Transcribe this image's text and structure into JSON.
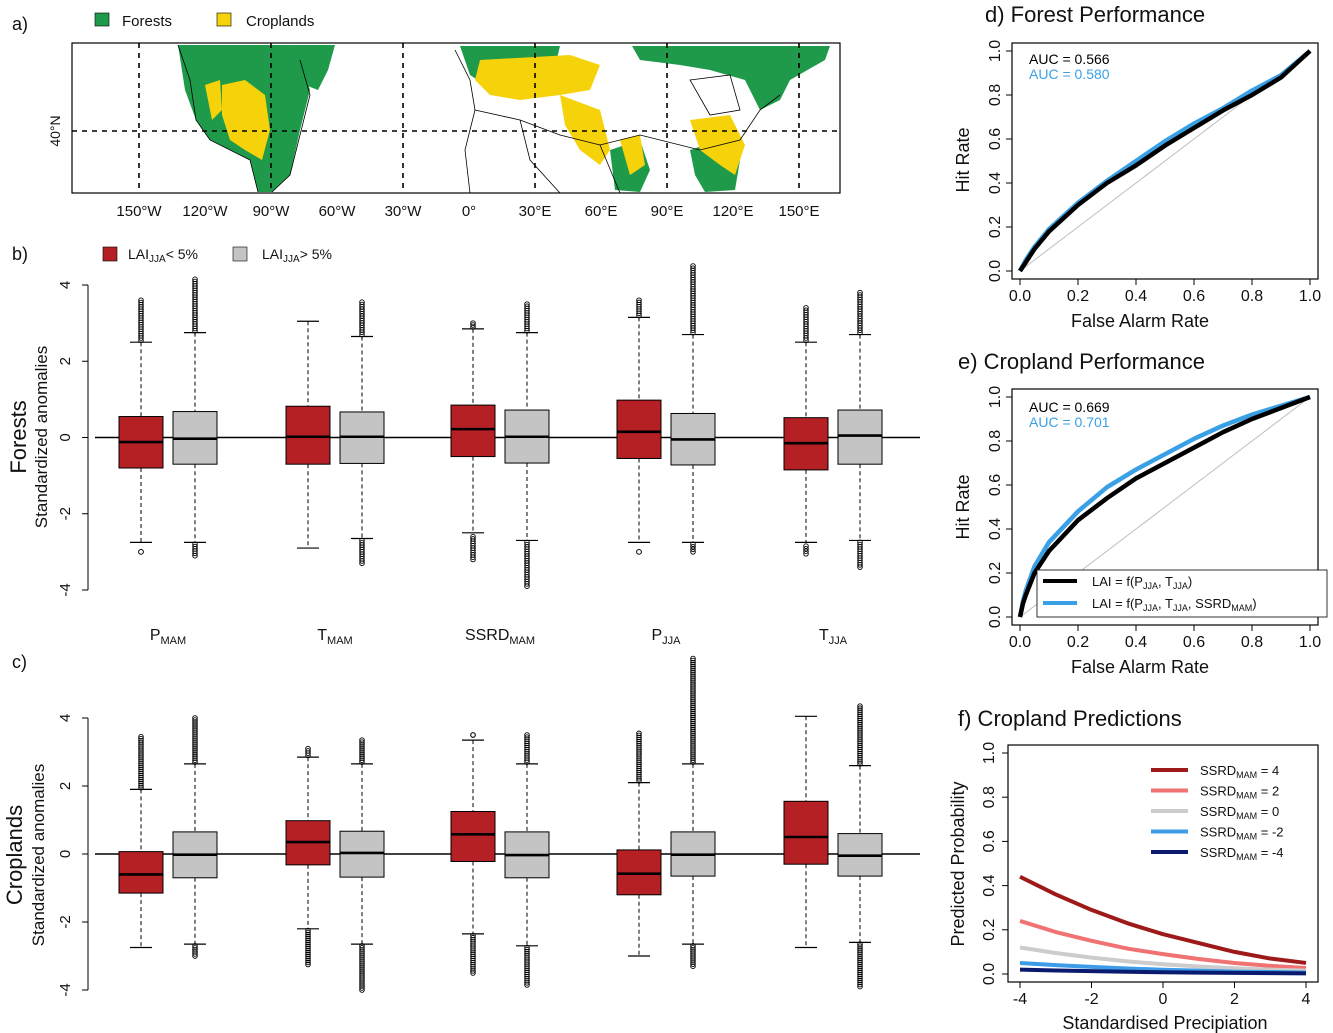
{
  "colors": {
    "forest": "#1f9a4a",
    "cropland": "#f5d20a",
    "box_low": "#b52025",
    "box_high": "#c4c4c4",
    "roc_black": "#000000",
    "roc_blue": "#3aa0e6",
    "ssrd": [
      "#9e1a1a",
      "#f07272",
      "#cccccc",
      "#3d9be8",
      "#0a1a6e"
    ]
  },
  "panels": {
    "a": {
      "tag": "a)",
      "legend": [
        "Forests",
        "Croplands"
      ],
      "lat_label": "40°N",
      "lon_labels": [
        "150°W",
        "120°W",
        "90°W",
        "60°W",
        "30°W",
        "0°",
        "30°E",
        "60°E",
        "90°E",
        "120°E",
        "150°E"
      ]
    },
    "b": {
      "tag": "b)",
      "title": "Forests",
      "ylabel": "Standardized anomalies"
    },
    "c": {
      "tag": "c)",
      "title": "Croplands",
      "ylabel": "Standardized anomalies"
    },
    "bc_legend": [
      "LAI_JJA < 5%",
      "LAI_JJA > 5%"
    ],
    "d": {
      "title": "d) Forest Performance",
      "xlabel": "False Alarm Rate",
      "ylabel": "Hit Rate",
      "auc": [
        "AUC = 0.566",
        "AUC = 0.580"
      ]
    },
    "e": {
      "title": "e) Cropland Performance",
      "xlabel": "False Alarm Rate",
      "ylabel": "Hit Rate",
      "auc": [
        "AUC = 0.669",
        "AUC = 0.701"
      ],
      "legend": [
        "LAI = f(P_JJA, T_JJA)",
        "LAI = f(P_JJA, T_JJA, SSRD_MAM)"
      ]
    },
    "f": {
      "title": "f) Cropland Predictions",
      "xlabel": "Standardised Precipiation",
      "ylabel": "Predicted Probability",
      "legend": [
        "SSRD_MAM = 4",
        "SSRD_MAM = 2",
        "SSRD_MAM = 0",
        "SSRD_MAM = -2",
        "SSRD_MAM = -4"
      ]
    }
  },
  "chart_data": [
    {
      "type": "box",
      "panel": "b",
      "title": "Forests",
      "ylabel": "Standardized anomalies",
      "ylim": [
        -4,
        4
      ],
      "yticks": [
        -4,
        -2,
        0,
        2,
        4
      ],
      "categories": [
        "P_MAM",
        "T_MAM",
        "SSRD_MAM",
        "P_JJA",
        "T_JJA"
      ],
      "series": [
        {
          "name": "LAI_JJA < 5%",
          "boxes": [
            {
              "min": -2.75,
              "q1": -0.8,
              "median": -0.12,
              "q3": 0.55,
              "max": 2.5,
              "out_low": [
                -3.0
              ],
              "out_high_from": 2.55,
              "out_high_to": 3.6
            },
            {
              "min": -2.9,
              "q1": -0.7,
              "median": 0.02,
              "q3": 0.82,
              "max": 3.05,
              "out_low": [],
              "out_high_from": null,
              "out_high_to": null
            },
            {
              "min": -2.5,
              "q1": -0.5,
              "median": 0.22,
              "q3": 0.85,
              "max": 2.85,
              "out_low_from": -2.6,
              "out_low_to": -3.2,
              "out_high_from": 2.9,
              "out_high_to": 3.0
            },
            {
              "min": -2.75,
              "q1": -0.55,
              "median": 0.15,
              "q3": 0.98,
              "max": 3.15,
              "out_low": [
                -3.0
              ],
              "out_high_from": 3.2,
              "out_high_to": 3.6
            },
            {
              "min": -2.75,
              "q1": -0.85,
              "median": -0.15,
              "q3": 0.52,
              "max": 2.5,
              "out_low_from": -2.85,
              "out_low_to": -3.05,
              "out_high_from": 2.55,
              "out_high_to": 3.4
            }
          ]
        },
        {
          "name": "LAI_JJA > 5%",
          "boxes": [
            {
              "min": -2.75,
              "q1": -0.7,
              "median": -0.03,
              "q3": 0.68,
              "max": 2.75,
              "out_low_from": -2.8,
              "out_low_to": -3.1,
              "out_high_from": 2.8,
              "out_high_to": 4.15
            },
            {
              "min": -2.65,
              "q1": -0.68,
              "median": 0.02,
              "q3": 0.67,
              "max": 2.65,
              "out_low_from": -2.7,
              "out_low_to": -3.3,
              "out_high_from": 2.7,
              "out_high_to": 3.55
            },
            {
              "min": -2.7,
              "q1": -0.67,
              "median": 0.02,
              "q3": 0.72,
              "max": 2.75,
              "out_low_from": -2.75,
              "out_low_to": -3.9,
              "out_high_from": 2.8,
              "out_high_to": 3.5
            },
            {
              "min": -2.75,
              "q1": -0.72,
              "median": -0.05,
              "q3": 0.63,
              "max": 2.7,
              "out_low_from": -2.8,
              "out_low_to": -3.0,
              "out_high_from": 2.75,
              "out_high_to": 4.5
            },
            {
              "min": -2.7,
              "q1": -0.7,
              "median": 0.05,
              "q3": 0.72,
              "max": 2.7,
              "out_low_from": -2.75,
              "out_low_to": -3.4,
              "out_high_from": 2.75,
              "out_high_to": 3.8
            }
          ]
        }
      ]
    },
    {
      "type": "box",
      "panel": "c",
      "title": "Croplands",
      "ylabel": "Standardized anomalies",
      "ylim": [
        -4,
        4
      ],
      "yticks": [
        -4,
        -2,
        0,
        2,
        4
      ],
      "categories": [
        "P_MAM",
        "T_MAM",
        "SSRD_MAM",
        "P_JJA",
        "T_JJA"
      ],
      "series": [
        {
          "name": "LAI_JJA < 5%",
          "boxes": [
            {
              "min": -2.75,
              "q1": -1.15,
              "median": -0.6,
              "q3": 0.07,
              "max": 1.9,
              "out_low": [],
              "out_high_from": 1.95,
              "out_high_to": 3.45
            },
            {
              "min": -2.2,
              "q1": -0.32,
              "median": 0.35,
              "q3": 0.98,
              "max": 2.85,
              "out_low_from": -2.25,
              "out_low_to": -3.25,
              "out_high_from": 2.9,
              "out_high_to": 3.1
            },
            {
              "min": -2.35,
              "q1": -0.22,
              "median": 0.58,
              "q3": 1.25,
              "max": 3.35,
              "out_low_from": -2.4,
              "out_low_to": -3.5,
              "out_high_from": 3.5,
              "out_high_to": 3.5
            },
            {
              "min": -3.0,
              "q1": -1.2,
              "median": -0.58,
              "q3": 0.12,
              "max": 2.1,
              "out_low": [],
              "out_high_from": 2.15,
              "out_high_to": 3.55
            },
            {
              "min": -2.75,
              "q1": -0.3,
              "median": 0.5,
              "q3": 1.55,
              "max": 4.05,
              "out_low": [],
              "out_high_from": null,
              "out_high_to": null
            }
          ]
        },
        {
          "name": "LAI_JJA > 5%",
          "boxes": [
            {
              "min": -2.65,
              "q1": -0.7,
              "median": -0.02,
              "q3": 0.65,
              "max": 2.65,
              "out_low_from": -2.7,
              "out_low_to": -3.0,
              "out_high_from": 2.7,
              "out_high_to": 4.0
            },
            {
              "min": -2.65,
              "q1": -0.68,
              "median": 0.03,
              "q3": 0.67,
              "max": 2.65,
              "out_low_from": -2.7,
              "out_low_to": -4.0,
              "out_high_from": 2.7,
              "out_high_to": 3.35
            },
            {
              "min": -2.7,
              "q1": -0.7,
              "median": -0.03,
              "q3": 0.65,
              "max": 2.65,
              "out_low_from": -2.75,
              "out_low_to": -3.85,
              "out_high_from": 2.7,
              "out_high_to": 3.5
            },
            {
              "min": -2.65,
              "q1": -0.65,
              "median": -0.02,
              "q3": 0.65,
              "max": 2.65,
              "out_low_from": -2.7,
              "out_low_to": -3.3,
              "out_high_from": 2.7,
              "out_high_to": 5.75
            },
            {
              "min": -2.6,
              "q1": -0.65,
              "median": -0.05,
              "q3": 0.6,
              "max": 2.6,
              "out_low_from": -2.65,
              "out_low_to": -3.9,
              "out_high_from": 2.65,
              "out_high_to": 4.35
            }
          ]
        }
      ]
    },
    {
      "type": "line",
      "panel": "d",
      "title": "Forest Performance",
      "xlabel": "False Alarm Rate",
      "ylabel": "Hit Rate",
      "xlim": [
        0,
        1
      ],
      "ylim": [
        0,
        1
      ],
      "ticks": [
        0.0,
        0.2,
        0.4,
        0.6,
        0.8,
        1.0
      ],
      "x": [
        0,
        0.02,
        0.05,
        0.1,
        0.2,
        0.3,
        0.4,
        0.5,
        0.6,
        0.7,
        0.8,
        0.9,
        1.0
      ],
      "series": [
        {
          "auc": "0.566",
          "values": [
            0,
            0.04,
            0.1,
            0.18,
            0.3,
            0.4,
            0.48,
            0.57,
            0.65,
            0.73,
            0.8,
            0.88,
            1.0
          ]
        },
        {
          "auc": "0.580",
          "values": [
            0,
            0.05,
            0.11,
            0.19,
            0.31,
            0.41,
            0.5,
            0.59,
            0.67,
            0.74,
            0.82,
            0.89,
            1.0
          ]
        },
        {
          "name": "reference",
          "values": [
            0,
            0.02,
            0.05,
            0.1,
            0.2,
            0.3,
            0.4,
            0.5,
            0.6,
            0.7,
            0.8,
            0.9,
            1.0
          ]
        }
      ]
    },
    {
      "type": "line",
      "panel": "e",
      "title": "Cropland Performance",
      "xlabel": "False Alarm Rate",
      "ylabel": "Hit Rate",
      "xlim": [
        0,
        1
      ],
      "ylim": [
        0,
        1
      ],
      "ticks": [
        0.0,
        0.2,
        0.4,
        0.6,
        0.8,
        1.0
      ],
      "x": [
        0,
        0.01,
        0.02,
        0.05,
        0.1,
        0.2,
        0.3,
        0.4,
        0.5,
        0.6,
        0.7,
        0.8,
        0.9,
        1.0
      ],
      "series": [
        {
          "name": "LAI = f(P_JJA, T_JJA)",
          "auc": "0.669",
          "values": [
            0,
            0.06,
            0.1,
            0.2,
            0.3,
            0.44,
            0.54,
            0.63,
            0.7,
            0.77,
            0.84,
            0.9,
            0.95,
            1.0
          ]
        },
        {
          "name": "LAI = f(P_JJA, T_JJA, SSRD_MAM)",
          "auc": "0.701",
          "values": [
            0,
            0.07,
            0.12,
            0.23,
            0.34,
            0.48,
            0.59,
            0.67,
            0.74,
            0.81,
            0.87,
            0.92,
            0.96,
            1.0
          ]
        },
        {
          "name": "reference",
          "values": [
            0,
            0.01,
            0.02,
            0.05,
            0.1,
            0.2,
            0.3,
            0.4,
            0.5,
            0.6,
            0.7,
            0.8,
            0.9,
            1.0
          ]
        }
      ]
    },
    {
      "type": "line",
      "panel": "f",
      "title": "Cropland Predictions",
      "xlabel": "Standardised Precipiation",
      "ylabel": "Predicted Probability",
      "xlim": [
        -4,
        4
      ],
      "ylim": [
        0,
        1
      ],
      "xticks": [
        -4,
        -2,
        0,
        2,
        4
      ],
      "yticks": [
        0.0,
        0.2,
        0.4,
        0.6,
        0.8,
        1.0
      ],
      "x": [
        -4,
        -3,
        -2,
        -1,
        0,
        1,
        2,
        3,
        4
      ],
      "series": [
        {
          "name": "SSRD_MAM = 4",
          "values": [
            0.44,
            0.36,
            0.29,
            0.23,
            0.18,
            0.14,
            0.1,
            0.07,
            0.05
          ]
        },
        {
          "name": "SSRD_MAM = 2",
          "values": [
            0.24,
            0.19,
            0.15,
            0.115,
            0.09,
            0.068,
            0.05,
            0.037,
            0.027
          ]
        },
        {
          "name": "SSRD_MAM = 0",
          "values": [
            0.12,
            0.095,
            0.074,
            0.057,
            0.044,
            0.034,
            0.026,
            0.02,
            0.015
          ]
        },
        {
          "name": "SSRD_MAM = -2",
          "values": [
            0.05,
            0.04,
            0.032,
            0.025,
            0.019,
            0.015,
            0.011,
            0.009,
            0.007
          ]
        },
        {
          "name": "SSRD_MAM = -4",
          "values": [
            0.02,
            0.016,
            0.013,
            0.01,
            0.008,
            0.006,
            0.005,
            0.004,
            0.003
          ]
        }
      ]
    }
  ]
}
